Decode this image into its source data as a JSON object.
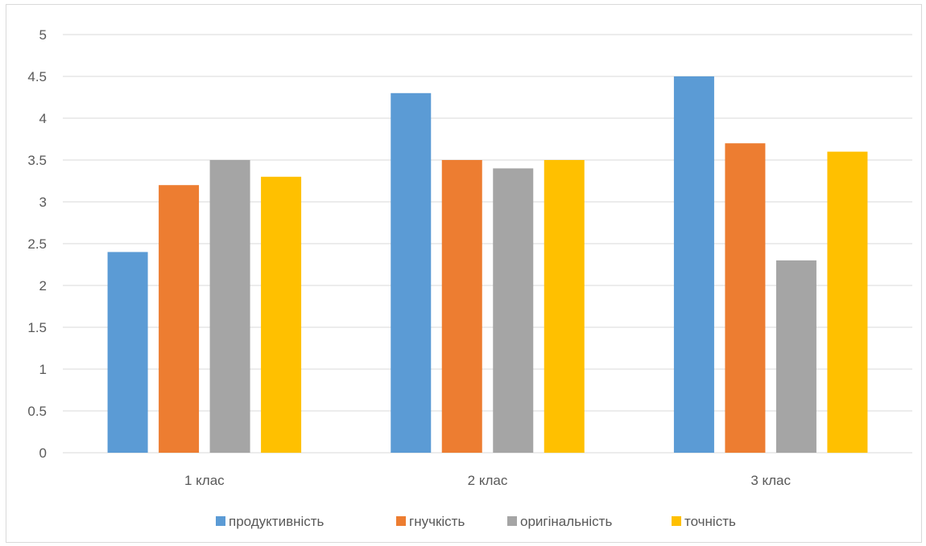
{
  "chart_data": {
    "type": "bar",
    "title": "",
    "xlabel": "",
    "ylabel": "",
    "ylim": [
      0,
      5
    ],
    "yticks": [
      "0",
      "0.5",
      "1",
      "1.5",
      "2",
      "2.5",
      "3",
      "3.5",
      "4",
      "4.5",
      "5"
    ],
    "grid": true,
    "legend_position": "bottom",
    "categories": [
      "1 клас",
      "2 клас",
      "3 клас"
    ],
    "series": [
      {
        "name": "продуктивність",
        "color": "#5B9BD5",
        "values": [
          2.4,
          4.3,
          4.5
        ]
      },
      {
        "name": "гнучкість",
        "color": "#ED7D31",
        "values": [
          3.2,
          3.5,
          3.7
        ]
      },
      {
        "name": "оригінальність",
        "color": "#A5A5A5",
        "values": [
          3.5,
          3.4,
          2.3
        ]
      },
      {
        "name": "точність",
        "color": "#FFC000",
        "values": [
          3.3,
          3.5,
          3.6
        ]
      }
    ]
  }
}
